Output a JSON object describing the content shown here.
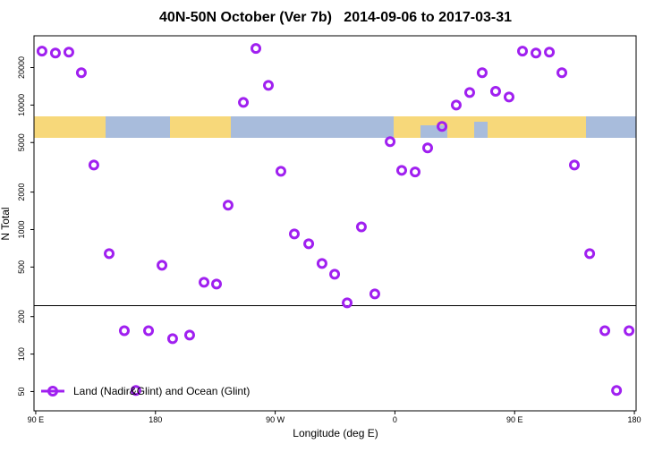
{
  "chart_data": {
    "type": "scatter",
    "title": "40N-50N October (Ver 7b)   2014-09-06 to 2017-03-31",
    "x_label": "Longitude (deg E)",
    "y_label": "N Total",
    "y_log": true,
    "xlim": [
      88.7,
      541.3
    ],
    "ylim": [
      35,
      36000
    ],
    "xticks": [
      {
        "value": 90,
        "label": "90 E"
      },
      180,
      {
        "value": 270,
        "label": "90 W"
      },
      {
        "value": 360,
        "label": "0"
      },
      {
        "value": 450,
        "label": "90 E"
      },
      {
        "value": 540,
        "label": "180"
      }
    ],
    "yticks": [
      50,
      100,
      200,
      500,
      1000,
      2000,
      5000,
      10000,
      20000
    ],
    "reference_line": 245,
    "legend": "bottom-left",
    "series": [
      {
        "name": "Land (Nadir&Glint) and Ocean (Glint)",
        "color": "#a020f0",
        "x": [
          94.7,
          104.8,
          114.9,
          124.3,
          133.7,
          145.2,
          156.6,
          165.3,
          174.8,
          184.9,
          192.9,
          205.7,
          216.5,
          225.9,
          234.6,
          246.1,
          255.5,
          264.9,
          274.3,
          284.4,
          295.2,
          305.2,
          314.7,
          324.1,
          334.8,
          344.9,
          356.4,
          365.1,
          375.2,
          384.6,
          395.4,
          406.1,
          416.2,
          425.6,
          435.7,
          445.8,
          455.9,
          466.0,
          476.1,
          485.5,
          494.9,
          506.4,
          517.8,
          526.6,
          536.0
        ],
        "values": [
          27100,
          26200,
          26600,
          18200,
          3300,
          641,
          154,
          51,
          154,
          517,
          133,
          142,
          377,
          365,
          1570,
          10500,
          28500,
          14400,
          2940,
          923,
          769,
          534,
          438,
          258,
          1050,
          304,
          5080,
          2990,
          2900,
          4530,
          6730,
          10000,
          12600,
          18200,
          12900,
          11600,
          27100,
          26200,
          26600,
          18200,
          3300,
          641,
          154,
          51,
          154
        ]
      }
    ]
  }
}
